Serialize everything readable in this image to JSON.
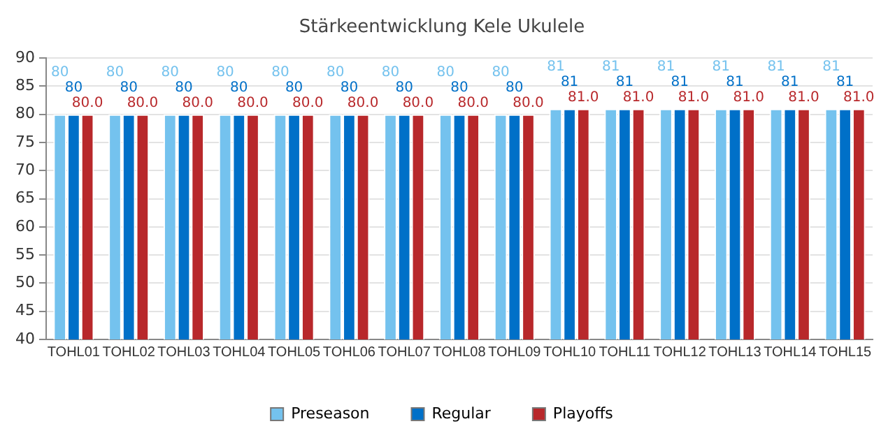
{
  "chart_data": {
    "type": "bar",
    "title": "Stärkeentwicklung Kele Ukulele",
    "categories": [
      "TOHL01",
      "TOHL02",
      "TOHL03",
      "TOHL04",
      "TOHL05",
      "TOHL06",
      "TOHL07",
      "TOHL08",
      "TOHL09",
      "TOHL10",
      "TOHL11",
      "TOHL12",
      "TOHL13",
      "TOHL14",
      "TOHL15"
    ],
    "series": [
      {
        "name": "Preseason",
        "color": "#74c2ee",
        "values": [
          80,
          80,
          80,
          80,
          80,
          80,
          80,
          80,
          80,
          81,
          81,
          81,
          81,
          81,
          81
        ],
        "value_labels": [
          "80",
          "80",
          "80",
          "80",
          "80",
          "80",
          "80",
          "80",
          "80",
          "81",
          "81",
          "81",
          "81",
          "81",
          "81"
        ]
      },
      {
        "name": "Regular",
        "color": "#0070c8",
        "values": [
          80,
          80,
          80,
          80,
          80,
          80,
          80,
          80,
          80,
          81,
          81,
          81,
          81,
          81,
          81
        ],
        "value_labels": [
          "80",
          "80",
          "80",
          "80",
          "80",
          "80",
          "80",
          "80",
          "80",
          "81",
          "81",
          "81",
          "81",
          "81",
          "81"
        ]
      },
      {
        "name": "Playoffs",
        "color": "#b8282b",
        "values": [
          80,
          80,
          80,
          80,
          80,
          80,
          80,
          80,
          80,
          81,
          81,
          81,
          81,
          81,
          81
        ],
        "value_labels": [
          "80.0",
          "80.0",
          "80.0",
          "80.0",
          "80.0",
          "80.0",
          "80.0",
          "80.0",
          "80.0",
          "81.0",
          "81.0",
          "81.0",
          "81.0",
          "81.0",
          "81.0"
        ]
      }
    ],
    "ylim": [
      40,
      90
    ],
    "yticks": [
      40,
      45,
      50,
      55,
      60,
      65,
      70,
      75,
      80,
      85,
      90
    ],
    "grid": "y",
    "legend": "bottom"
  }
}
